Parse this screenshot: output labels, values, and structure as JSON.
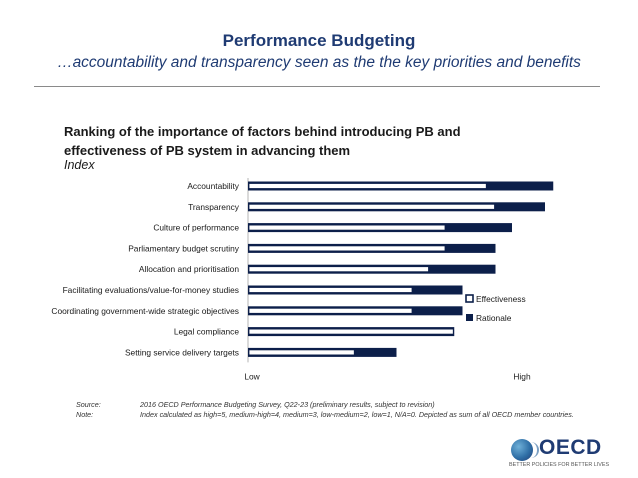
{
  "header": {
    "title": "Performance Budgeting",
    "subtitle": "…accountability and transparency seen as the the key priorities and benefits"
  },
  "chart_title": "Ranking of the importance of factors behind introducing PB and effectiveness of PB system in advancing them",
  "chart_index_label": "Index",
  "chart_data": {
    "type": "bar",
    "orientation": "horizontal",
    "stacked": true,
    "categories": [
      "Accountability",
      "Transparency",
      "Culture of performance",
      "Parliamentary budget scrutiny",
      "Allocation and prioritisation",
      "Facilitating evaluations/value-for-money studies",
      "Coordinating government-wide strategic objectives",
      "Legal compliance",
      "Setting service delivery targets"
    ],
    "series": [
      {
        "name": "Effectiveness",
        "values": [
          2.9,
          3.0,
          2.4,
          2.4,
          2.2,
          2.0,
          2.0,
          2.5,
          1.3
        ]
      },
      {
        "name": "Rationale",
        "values": [
          0.8,
          0.6,
          0.8,
          0.6,
          0.8,
          0.6,
          0.6,
          0.0,
          0.5
        ]
      }
    ],
    "xlim": [
      0,
      4
    ],
    "x_axis_labels": {
      "low": "Low",
      "high": "High"
    },
    "legend_position": "right",
    "grid": false,
    "colors": {
      "Effectiveness": "#ffffff",
      "Rationale": "#0c1f4a"
    }
  },
  "notes": [
    {
      "key": "Source:",
      "text": "2016 OECD Performance Budgeting Survey, Q22-23 (preliminary results, subject to revision)"
    },
    {
      "key": "Note:",
      "text": "Index calculated as high=5, medium-high=4, medium=3, low-medium=2, low=1, N/A=0. Depicted as sum of all OECD member countries."
    }
  ],
  "logo": {
    "text": "OECD",
    "tagline": "BETTER POLICIES FOR BETTER LIVES"
  }
}
